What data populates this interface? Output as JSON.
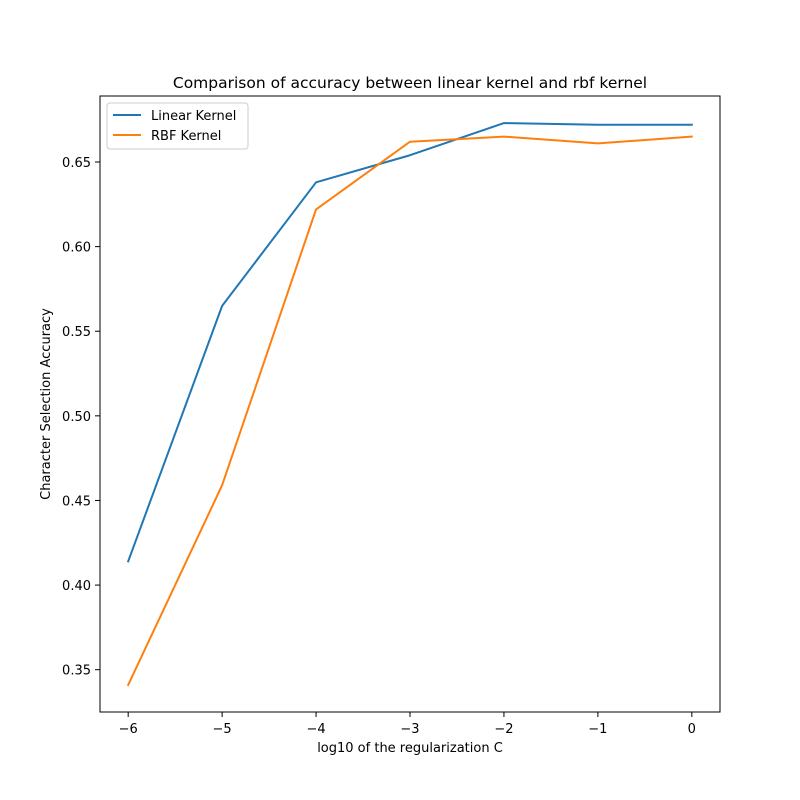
{
  "chart_data": {
    "type": "line",
    "title": "Comparison of accuracy between linear kernel and rbf kernel",
    "xlabel": "log10 of the regularization C",
    "ylabel": "Character Selection Accuracy",
    "x": [
      -6,
      -5,
      -4,
      -3,
      -2,
      -1,
      0
    ],
    "x_tick_labels": [
      "−6",
      "−5",
      "−4",
      "−3",
      "−2",
      "−1",
      "0"
    ],
    "x_ticks": [
      -6,
      -5,
      -4,
      -3,
      -2,
      -1,
      0
    ],
    "y_ticks": [
      0.35,
      0.4,
      0.45,
      0.5,
      0.55,
      0.6,
      0.65
    ],
    "y_tick_labels": [
      "0.35",
      "0.40",
      "0.45",
      "0.50",
      "0.55",
      "0.60",
      "0.65"
    ],
    "xlim": [
      -6.3,
      0.3
    ],
    "ylim": [
      0.325,
      0.689
    ],
    "grid": false,
    "legend_position": "upper-left",
    "series": [
      {
        "name": "Linear Kernel",
        "color": "#1f77b4",
        "values": [
          0.414,
          0.565,
          0.638,
          0.654,
          0.673,
          0.672,
          0.672
        ]
      },
      {
        "name": "RBF Kernel",
        "color": "#ff7f0e",
        "values": [
          0.341,
          0.459,
          0.622,
          0.662,
          0.665,
          0.661,
          0.665
        ]
      }
    ]
  }
}
